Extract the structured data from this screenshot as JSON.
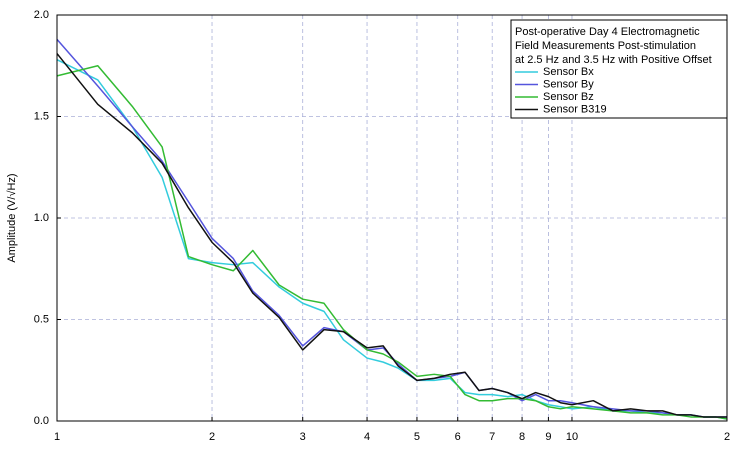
{
  "chart_data": {
    "type": "line",
    "log_x": true,
    "grid": true,
    "legend_position": "upper right",
    "y_label": "Amplitude (V/√Hz)",
    "legend_title": [
      "Post-operative Day 4 Electromagnetic",
      "Field Measurements Post-stimulation",
      "at 2.5 Hz and 3.5 Hz with Positive Offset"
    ],
    "x": [
      1,
      1.2,
      1.4,
      1.6,
      1.8,
      2,
      2.2,
      2.4,
      2.7,
      3,
      3.3,
      3.6,
      4,
      4.3,
      4.6,
      5,
      5.4,
      5.8,
      6.2,
      6.6,
      7,
      7.5,
      8,
      8.5,
      9,
      9.5,
      10,
      11,
      12,
      13,
      14,
      15,
      16,
      17,
      18,
      19,
      20
    ],
    "series": [
      {
        "name": "Sensor Bx",
        "color": "#33ccdd",
        "values": [
          1.78,
          1.68,
          1.45,
          1.2,
          0.8,
          0.78,
          0.77,
          0.78,
          0.66,
          0.58,
          0.54,
          0.4,
          0.31,
          0.29,
          0.26,
          0.2,
          0.2,
          0.21,
          0.14,
          0.13,
          0.13,
          0.12,
          0.13,
          0.1,
          0.08,
          0.07,
          0.06,
          0.07,
          0.05,
          0.05,
          0.04,
          0.04,
          0.03,
          0.03,
          0.02,
          0.02,
          0.01
        ]
      },
      {
        "name": "Sensor By",
        "color": "#5555dd",
        "values": [
          1.88,
          1.65,
          1.45,
          1.28,
          1.08,
          0.9,
          0.8,
          0.64,
          0.52,
          0.37,
          0.46,
          0.44,
          0.35,
          0.36,
          0.28,
          0.2,
          0.21,
          0.22,
          0.24,
          0.15,
          0.16,
          0.14,
          0.1,
          0.13,
          0.1,
          0.1,
          0.09,
          0.07,
          0.06,
          0.05,
          0.05,
          0.04,
          0.03,
          0.03,
          0.02,
          0.02,
          0.02
        ]
      },
      {
        "name": "Sensor Bz",
        "color": "#33bb33",
        "values": [
          1.7,
          1.75,
          1.55,
          1.35,
          0.81,
          0.77,
          0.74,
          0.84,
          0.67,
          0.6,
          0.58,
          0.45,
          0.35,
          0.33,
          0.29,
          0.22,
          0.23,
          0.22,
          0.13,
          0.1,
          0.1,
          0.11,
          0.11,
          0.1,
          0.07,
          0.06,
          0.07,
          0.06,
          0.05,
          0.04,
          0.04,
          0.03,
          0.03,
          0.02,
          0.02,
          0.02,
          0.01
        ]
      },
      {
        "name": "Sensor B319",
        "color": "#111111",
        "values": [
          1.81,
          1.56,
          1.42,
          1.27,
          1.05,
          0.88,
          0.78,
          0.63,
          0.51,
          0.35,
          0.45,
          0.44,
          0.36,
          0.37,
          0.27,
          0.2,
          0.21,
          0.23,
          0.24,
          0.15,
          0.16,
          0.14,
          0.11,
          0.14,
          0.12,
          0.09,
          0.08,
          0.1,
          0.05,
          0.06,
          0.05,
          0.05,
          0.03,
          0.03,
          0.02,
          0.02,
          0.02
        ]
      }
    ],
    "xlim": [
      1,
      20
    ],
    "xticks": [
      1,
      2,
      3,
      4,
      5,
      6,
      7,
      8,
      9,
      10,
      {
        "value": 20,
        "label": "2"
      }
    ],
    "ylim": [
      0,
      2
    ],
    "yticks": [
      {
        "value": 0,
        "label": "0.0"
      },
      {
        "value": 0.5,
        "label": "0.5"
      },
      {
        "value": 1,
        "label": "1.0"
      },
      {
        "value": 1.5,
        "label": "1.5"
      },
      {
        "value": 2,
        "label": "2.0"
      }
    ]
  }
}
